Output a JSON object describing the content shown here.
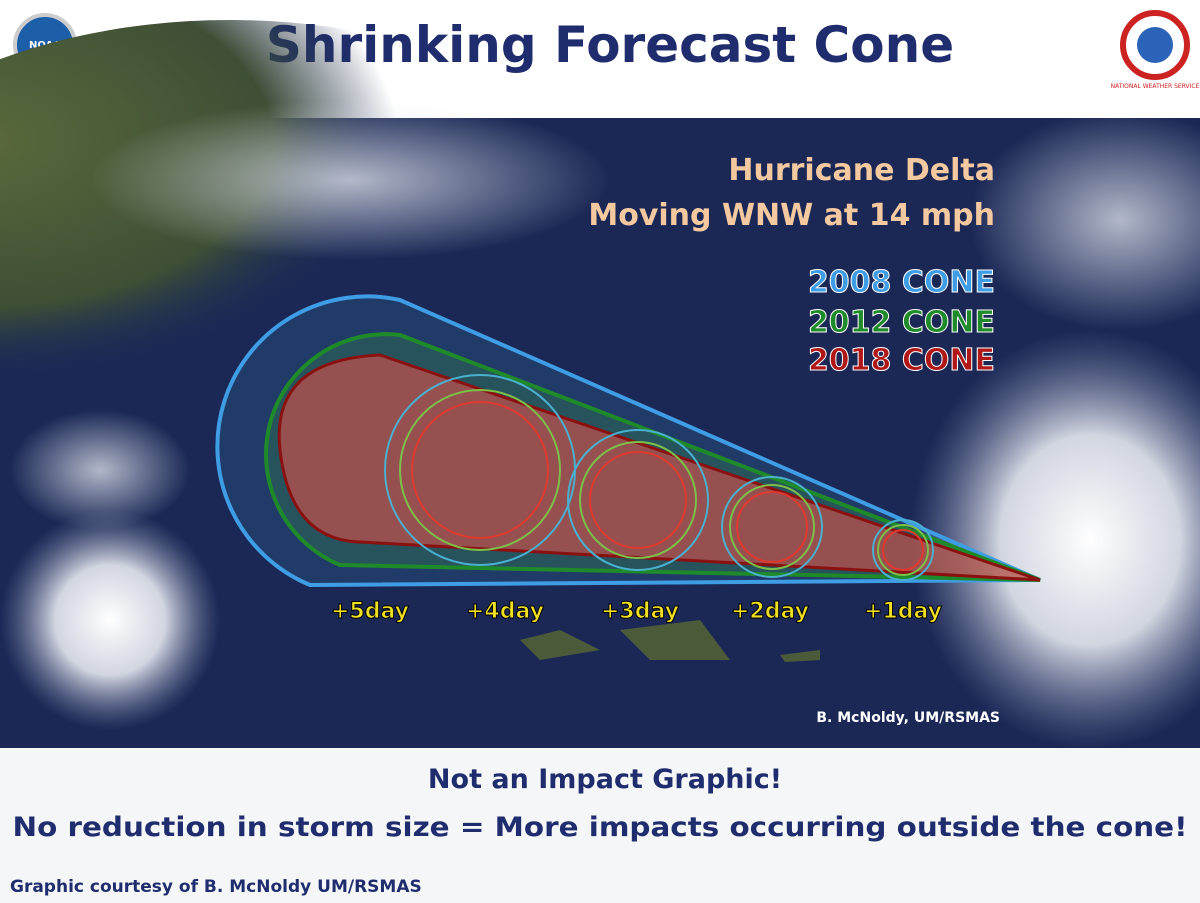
{
  "header": {
    "title": "Shrinking Forecast Cone",
    "left_logo": "NOAA",
    "right_logo": "NATIONAL WEATHER SERVICE"
  },
  "map": {
    "storm_name": "Hurricane Delta",
    "storm_motion": "Moving WNW at 14 mph",
    "legend": [
      "2008 CONE",
      "2012 CONE",
      "2018 CONE"
    ],
    "day_labels": [
      "+5day",
      "+4day",
      "+3day",
      "+2day",
      "+1day"
    ],
    "credit": "B. McNoldy, UM/RSMAS"
  },
  "footer": {
    "line1": "Not an Impact Graphic!",
    "line2": "No reduction in storm size = More impacts occurring outside the cone!",
    "courtesy": "Graphic courtesy of B. McNoldy UM/RSMAS"
  }
}
